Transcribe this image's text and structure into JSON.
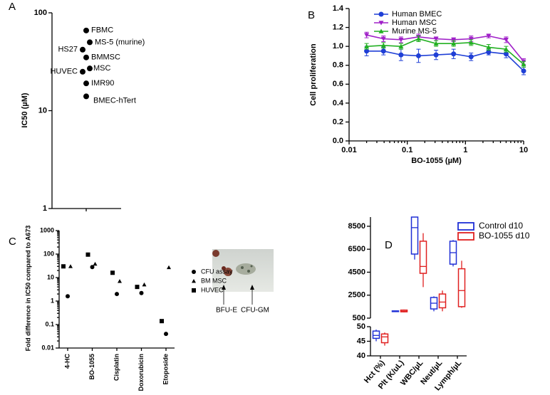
{
  "chart_data": [
    {
      "type": "dot",
      "panel_label": "A",
      "ylabel": "IC50 (µM)",
      "log_y": true,
      "ylim": [
        1,
        100
      ],
      "yticks": [
        1,
        10,
        100
      ],
      "categories": [
        "FBMC",
        "MS-5 (murine)",
        "HS27",
        "BMMSC",
        "MSC",
        "HUVEC",
        "IMR90",
        "BMEC-hTert"
      ],
      "values": [
        66,
        50,
        42,
        35,
        27,
        25,
        19,
        14
      ],
      "color": "#000000"
    },
    {
      "type": "line",
      "panel_label": "B",
      "ylabel": "Cell proliferation",
      "xlabel": "BO-1055 (µM)",
      "log_x": true,
      "xlim": [
        0.01,
        10
      ],
      "xticks": [
        0.01,
        0.1,
        1,
        10
      ],
      "ylim": [
        0,
        1.4
      ],
      "yticks": [
        {
          "value": 0,
          "label": "0.0"
        },
        {
          "value": 0.2,
          "label": "0.2"
        },
        {
          "value": 0.4,
          "label": "0.4"
        },
        {
          "value": 0.6,
          "label": "0.6"
        },
        {
          "value": 0.8,
          "label": "0.8"
        },
        {
          "value": 1,
          "label": "1.0"
        },
        {
          "value": 1.2,
          "label": "1.2"
        },
        {
          "value": 1.4,
          "label": "1.4"
        }
      ],
      "x": [
        0.02,
        0.039,
        0.078,
        0.156,
        0.3125,
        0.625,
        1.25,
        2.5,
        5,
        10
      ],
      "series": [
        {
          "name": "Human BMEC",
          "color": "#1f3fd6",
          "marker": "circle",
          "values": [
            0.95,
            0.95,
            0.91,
            0.9,
            0.91,
            0.92,
            0.89,
            0.94,
            0.92,
            0.74
          ],
          "errors": [
            0.05,
            0.04,
            0.06,
            0.07,
            0.05,
            0.05,
            0.04,
            0.03,
            0.04,
            0.04
          ]
        },
        {
          "name": "Human MSC",
          "color": "#a020c8",
          "marker": "triangle-down",
          "values": [
            1.12,
            1.08,
            1.07,
            1.1,
            1.08,
            1.07,
            1.08,
            1.11,
            1.07,
            0.84
          ],
          "errors": [
            0.03,
            0.03,
            0.03,
            0.03,
            0.02,
            0.02,
            0.03,
            0.02,
            0.03,
            0.03
          ]
        },
        {
          "name": "Murine MS-5",
          "color": "#22b022",
          "marker": "triangle",
          "values": [
            1.0,
            1.01,
            1.0,
            1.08,
            1.03,
            1.03,
            1.04,
            0.99,
            0.97,
            0.81
          ],
          "errors": [
            0.03,
            0.03,
            0.03,
            0.03,
            0.03,
            0.03,
            0.03,
            0.03,
            0.03,
            0.03
          ]
        }
      ]
    },
    {
      "type": "scatter",
      "panel_label": "C",
      "ylabel": "Fold difference in IC50 compared to A673",
      "log_y": true,
      "ylim": [
        0.01,
        1000
      ],
      "yticks": [
        0.01,
        0.1,
        1,
        10,
        100,
        1000
      ],
      "categories": [
        "4-HC",
        "BO-1055",
        "Cisplatin",
        "Doxorubicin",
        "Etoposide"
      ],
      "series": [
        {
          "name": "CFU assay",
          "marker": "circle",
          "color": "#000000",
          "values": [
            1.6,
            28,
            2,
            2.2,
            0.04
          ]
        },
        {
          "name": "BM MSC",
          "marker": "triangle",
          "color": "#000000",
          "values": [
            30,
            38,
            7,
            5,
            27
          ]
        },
        {
          "name": "HUVEC",
          "marker": "square",
          "color": "#000000",
          "values": [
            30,
            95,
            16,
            4,
            0.14
          ]
        }
      ],
      "annotations": [
        "BFU-E",
        "CFU-GM"
      ]
    },
    {
      "type": "box",
      "panel_label": "D",
      "ylim": [
        500,
        9300
      ],
      "yticks": [
        500,
        2500,
        4500,
        6500,
        8500
      ],
      "ylim_low": [
        40,
        50
      ],
      "yticks_low": [
        40,
        45,
        50
      ],
      "categories": [
        "Hct (%)",
        "Plt (K/uL)",
        "WBC/µL",
        "Neut/µL",
        "Lymph/µL"
      ],
      "series": [
        {
          "name": "Control d10",
          "color": "#1f2fd6",
          "values": [
            {
              "min": 45,
              "q1": 46,
              "median": 47,
              "q3": 48.5,
              "max": 49
            },
            {
              "min": 1050,
              "q1": 1080,
              "median": 1100,
              "q3": 1130,
              "max": 1150
            },
            {
              "min": 5600,
              "q1": 6080,
              "median": 8380,
              "q3": 9300,
              "max": 9300
            },
            {
              "min": 1100,
              "q1": 1300,
              "median": 1800,
              "q3": 2300,
              "max": 2400
            },
            {
              "min": 5000,
              "q1": 5200,
              "median": 6200,
              "q3": 7200,
              "max": 7300
            }
          ]
        },
        {
          "name": "BO-1055 d10",
          "color": "#e02020",
          "values": [
            {
              "min": 43.5,
              "q1": 44.5,
              "median": 46.5,
              "q3": 47.5,
              "max": 48
            },
            {
              "min": 1000,
              "q1": 1050,
              "median": 1100,
              "q3": 1200,
              "max": 1250
            },
            {
              "min": 3200,
              "q1": 4400,
              "median": 5000,
              "q3": 7200,
              "max": 7900
            },
            {
              "min": 1100,
              "q1": 1400,
              "median": 1900,
              "q3": 2600,
              "max": 2900
            },
            {
              "min": 1400,
              "q1": 1500,
              "median": 2900,
              "q3": 4800,
              "max": 5500
            }
          ]
        }
      ]
    }
  ]
}
